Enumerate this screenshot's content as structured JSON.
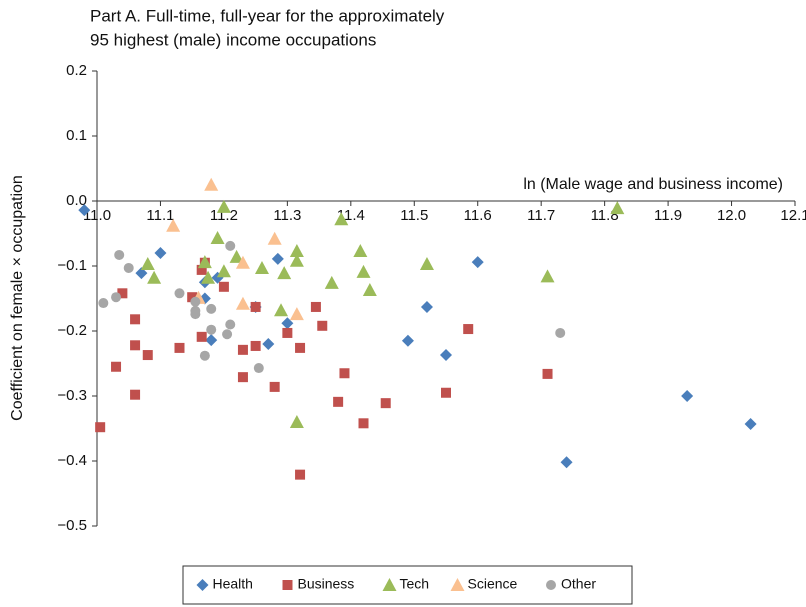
{
  "chart_data": {
    "type": "scatter",
    "title": [
      "Part A. Full-time, full-year for the approximately",
      "95 highest (male) income occupations"
    ],
    "x_label": "ln (Male wage and business income)",
    "y_label": "Coefficient on female × occupation",
    "xlim": [
      11.0,
      12.1
    ],
    "xticks": [
      {
        "value": 11.0,
        "label": "11.0"
      },
      11.1,
      11.2,
      11.3,
      11.4,
      11.5,
      11.6,
      11.7,
      11.8,
      11.9,
      {
        "value": 12.0,
        "label": "12.0"
      },
      12.1
    ],
    "ylim": [
      -0.5,
      0.2
    ],
    "yticks": [
      {
        "value": -0.5,
        "label": "−0.5"
      },
      {
        "value": -0.4,
        "label": "−0.4"
      },
      {
        "value": -0.3,
        "label": "−0.3"
      },
      {
        "value": -0.2,
        "label": "−0.2"
      },
      {
        "value": -0.1,
        "label": "−0.1"
      },
      {
        "value": 0,
        "label": "0.0"
      },
      0.1,
      0.2
    ],
    "legend": "bottom",
    "series": [
      {
        "name": "Health",
        "color": "#4a7ebb",
        "marker": "diamond",
        "x": [
          10.98,
          11.1,
          11.07,
          11.17,
          11.17,
          11.18,
          11.19,
          11.25,
          11.285,
          11.3,
          11.27,
          11.49,
          11.52,
          11.55,
          11.6,
          11.93,
          12.03,
          11.74
        ],
        "values": [
          -0.014,
          -0.08,
          -0.111,
          -0.125,
          -0.15,
          -0.214,
          -0.118,
          -0.163,
          -0.089,
          -0.188,
          -0.22,
          -0.215,
          -0.163,
          -0.237,
          -0.094,
          -0.3,
          -0.343,
          -0.402
        ]
      },
      {
        "name": "Business",
        "color": "#c0504d",
        "marker": "square",
        "x": [
          11.005,
          11.04,
          11.03,
          11.06,
          11.06,
          11.06,
          11.08,
          11.13,
          11.15,
          11.165,
          11.17,
          11.2,
          11.165,
          11.23,
          11.23,
          11.25,
          11.25,
          11.28,
          11.3,
          11.32,
          11.32,
          11.345,
          11.355,
          11.39,
          11.38,
          11.42,
          11.455,
          11.55,
          11.585,
          11.71
        ],
        "values": [
          -0.348,
          -0.142,
          -0.255,
          -0.182,
          -0.222,
          -0.298,
          -0.237,
          -0.226,
          -0.148,
          -0.106,
          -0.095,
          -0.132,
          -0.209,
          -0.229,
          -0.271,
          -0.223,
          -0.163,
          -0.286,
          -0.203,
          -0.226,
          -0.421,
          -0.163,
          -0.192,
          -0.265,
          -0.309,
          -0.342,
          -0.311,
          -0.295,
          -0.197,
          -0.266
        ]
      },
      {
        "name": "Tech",
        "color": "#9bbb59",
        "marker": "triangle",
        "x": [
          11.08,
          11.09,
          11.2,
          11.19,
          11.17,
          11.175,
          11.2,
          11.22,
          11.26,
          11.29,
          11.295,
          11.315,
          11.315,
          11.315,
          11.37,
          11.385,
          11.415,
          11.42,
          11.43,
          11.52,
          11.82,
          11.71
        ],
        "values": [
          -0.097,
          -0.118,
          -0.009,
          -0.057,
          -0.094,
          -0.118,
          -0.108,
          -0.086,
          -0.103,
          -0.168,
          -0.111,
          -0.077,
          -0.092,
          -0.34,
          -0.126,
          -0.028,
          -0.077,
          -0.109,
          -0.137,
          -0.097,
          -0.011,
          -0.116
        ]
      },
      {
        "name": "Science",
        "color": "#fac090",
        "marker": "triangle",
        "x": [
          11.12,
          11.18,
          11.16,
          11.23,
          11.23,
          11.28,
          11.315
        ],
        "values": [
          -0.038,
          0.025,
          -0.149,
          -0.095,
          -0.158,
          -0.058,
          -0.174
        ]
      },
      {
        "name": "Other",
        "color": "#a6a6a6",
        "marker": "circle",
        "x": [
          11.01,
          11.03,
          11.035,
          11.05,
          11.13,
          11.155,
          11.155,
          11.155,
          11.18,
          11.18,
          11.17,
          11.21,
          11.21,
          11.205,
          11.255,
          11.73
        ],
        "values": [
          -0.157,
          -0.148,
          -0.083,
          -0.103,
          -0.142,
          -0.155,
          -0.169,
          -0.174,
          -0.166,
          -0.198,
          -0.238,
          -0.069,
          -0.19,
          -0.205,
          -0.257,
          -0.203
        ]
      }
    ]
  }
}
